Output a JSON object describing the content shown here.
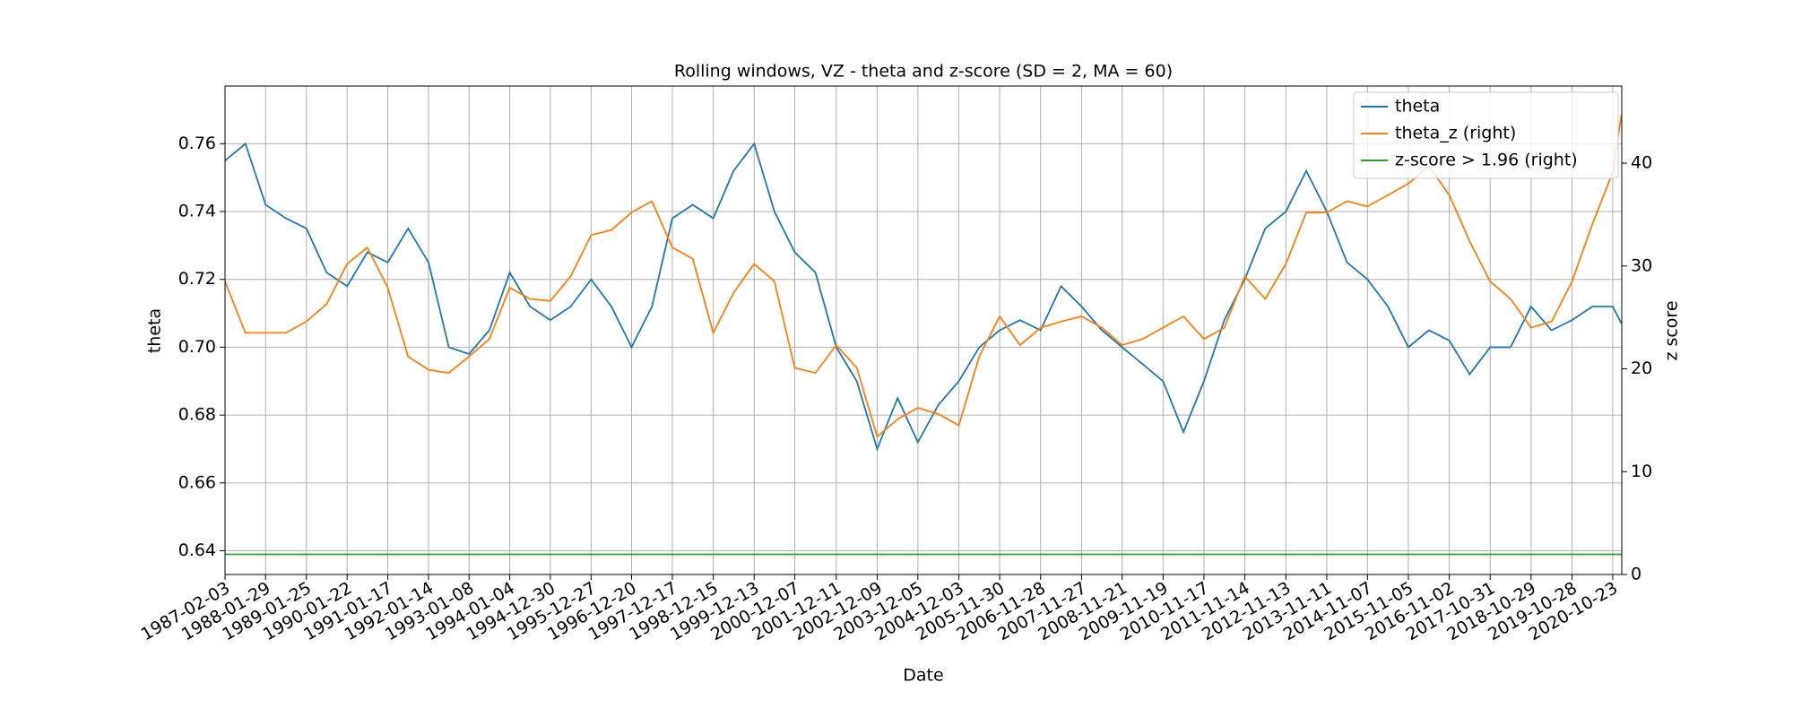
{
  "chart_data": {
    "type": "line",
    "title": "Rolling windows, VZ - theta and z-score (SD = 2, MA = 60)",
    "xlabel": "Date",
    "ylabel": "theta",
    "y2label": "z score",
    "x": [
      "1987-02-03",
      "1987-08-03",
      "1988-01-29",
      "1988-07-28",
      "1989-01-25",
      "1989-07-24",
      "1990-01-22",
      "1990-07-20",
      "1991-01-17",
      "1991-07-17",
      "1992-01-14",
      "1992-07-12",
      "1993-01-08",
      "1993-07-07",
      "1994-01-04",
      "1994-07-03",
      "1994-12-30",
      "1995-06-29",
      "1995-12-27",
      "1996-06-24",
      "1996-12-20",
      "1997-06-19",
      "1997-12-17",
      "1998-06-16",
      "1998-12-15",
      "1999-06-14",
      "1999-12-13",
      "2000-06-10",
      "2000-12-07",
      "2001-06-09",
      "2001-12-11",
      "2002-06-11",
      "2002-12-09",
      "2003-06-08",
      "2003-12-05",
      "2004-06-04",
      "2004-12-03",
      "2005-06-02",
      "2005-11-30",
      "2006-05-30",
      "2006-11-28",
      "2007-05-29",
      "2007-11-27",
      "2008-05-25",
      "2008-11-21",
      "2009-05-22",
      "2009-11-19",
      "2010-05-19",
      "2010-11-17",
      "2011-05-17",
      "2011-11-14",
      "2012-05-14",
      "2012-11-13",
      "2013-05-13",
      "2013-11-11",
      "2014-05-10",
      "2014-11-07",
      "2015-05-08",
      "2015-11-05",
      "2016-05-05",
      "2016-11-02",
      "2017-05-02",
      "2017-10-31",
      "2018-04-30",
      "2018-10-29",
      "2019-04-29",
      "2019-10-28",
      "2020-04-26",
      "2020-10-23",
      "2021-01-08"
    ],
    "series": [
      {
        "name": "theta",
        "color": "#1f77b4",
        "axis": "y",
        "values": [
          0.755,
          0.76,
          0.742,
          0.738,
          0.735,
          0.722,
          0.718,
          0.728,
          0.725,
          0.735,
          0.725,
          0.7,
          0.698,
          0.705,
          0.722,
          0.712,
          0.708,
          0.712,
          0.72,
          0.712,
          0.7,
          0.712,
          0.738,
          0.742,
          0.738,
          0.752,
          0.76,
          0.74,
          0.728,
          0.722,
          0.7,
          0.69,
          0.67,
          0.685,
          0.672,
          0.683,
          0.69,
          0.7,
          0.705,
          0.708,
          0.705,
          0.718,
          0.712,
          0.705,
          0.7,
          0.695,
          0.69,
          0.675,
          0.69,
          0.708,
          0.72,
          0.735,
          0.74,
          0.752,
          0.74,
          0.725,
          0.72,
          0.712,
          0.7,
          0.705,
          0.702,
          0.692,
          0.7,
          0.7,
          0.712,
          0.705,
          0.708,
          0.712,
          0.712,
          0.707
        ]
      },
      {
        "name": "theta_z (right)",
        "color": "#ff7f0e",
        "axis": "y2",
        "values": [
          28.5,
          23.5,
          23.5,
          23.5,
          24.6,
          26.3,
          30.2,
          31.8,
          27.9,
          21.2,
          19.9,
          19.6,
          21.2,
          22.9,
          27.9,
          26.8,
          26.6,
          29,
          33,
          33.5,
          35.2,
          36.3,
          31.8,
          30.7,
          23.5,
          27.4,
          30.2,
          28.5,
          20.1,
          19.6,
          22.3,
          20.1,
          13.4,
          15.1,
          16.2,
          15.6,
          14.5,
          21.2,
          25.1,
          22.3,
          24,
          24.6,
          25.1,
          24,
          22.3,
          22.9,
          24,
          25.1,
          22.9,
          24,
          29,
          26.8,
          30.2,
          35.2,
          35.2,
          36.3,
          35.8,
          36.9,
          38,
          39.7,
          36.9,
          32.4,
          28.5,
          26.8,
          24,
          24.6,
          28.5,
          34.1,
          39.1,
          44.7
        ]
      },
      {
        "name": "z-score > 1.96 (right)",
        "color": "#2ca02c",
        "axis": "y2",
        "values": [
          1.96,
          1.96,
          1.96,
          1.96,
          1.96,
          1.96,
          1.96,
          1.96,
          1.96,
          1.96,
          1.96,
          1.96,
          1.96,
          1.96,
          1.96,
          1.96,
          1.96,
          1.96,
          1.96,
          1.96,
          1.96,
          1.96,
          1.96,
          1.96,
          1.96,
          1.96,
          1.96,
          1.96,
          1.96,
          1.96,
          1.96,
          1.96,
          1.96,
          1.96,
          1.96,
          1.96,
          1.96,
          1.96,
          1.96,
          1.96,
          1.96,
          1.96,
          1.96,
          1.96,
          1.96,
          1.96,
          1.96,
          1.96,
          1.96,
          1.96,
          1.96,
          1.96,
          1.96,
          1.96,
          1.96,
          1.96,
          1.96,
          1.96,
          1.96,
          1.96,
          1.96,
          1.96,
          1.96,
          1.96,
          1.96,
          1.96,
          1.96,
          1.96,
          1.96,
          1.96
        ]
      }
    ],
    "xlim": [
      "1987-02-03",
      "2021-01-11"
    ],
    "xticks": [
      "1987-02-03",
      "1988-01-29",
      "1989-01-25",
      "1990-01-22",
      "1991-01-17",
      "1992-01-14",
      "1993-01-08",
      "1994-01-04",
      "1994-12-30",
      "1995-12-27",
      "1996-12-20",
      "1997-12-17",
      "1998-12-15",
      "1999-12-13",
      "2000-12-07",
      "2001-12-11",
      "2002-12-09",
      "2003-12-05",
      "2004-12-03",
      "2005-11-30",
      "2006-11-28",
      "2007-11-27",
      "2008-11-21",
      "2009-11-19",
      "2010-11-17",
      "2011-11-14",
      "2012-11-13",
      "2013-11-11",
      "2014-11-07",
      "2015-11-05",
      "2016-11-02",
      "2017-10-31",
      "2018-10-29",
      "2019-10-28",
      "2020-10-23"
    ],
    "ylim": [
      0.633,
      0.777
    ],
    "yticks": [
      0.64,
      0.66,
      0.68,
      {
        "value": 0.7,
        "label": "0.70"
      },
      0.72,
      0.74,
      0.76
    ],
    "y2lim": [
      0,
      47.5
    ],
    "y2ticks": [
      0,
      10,
      20,
      30,
      40
    ],
    "grid": true,
    "legend": "upper right"
  }
}
